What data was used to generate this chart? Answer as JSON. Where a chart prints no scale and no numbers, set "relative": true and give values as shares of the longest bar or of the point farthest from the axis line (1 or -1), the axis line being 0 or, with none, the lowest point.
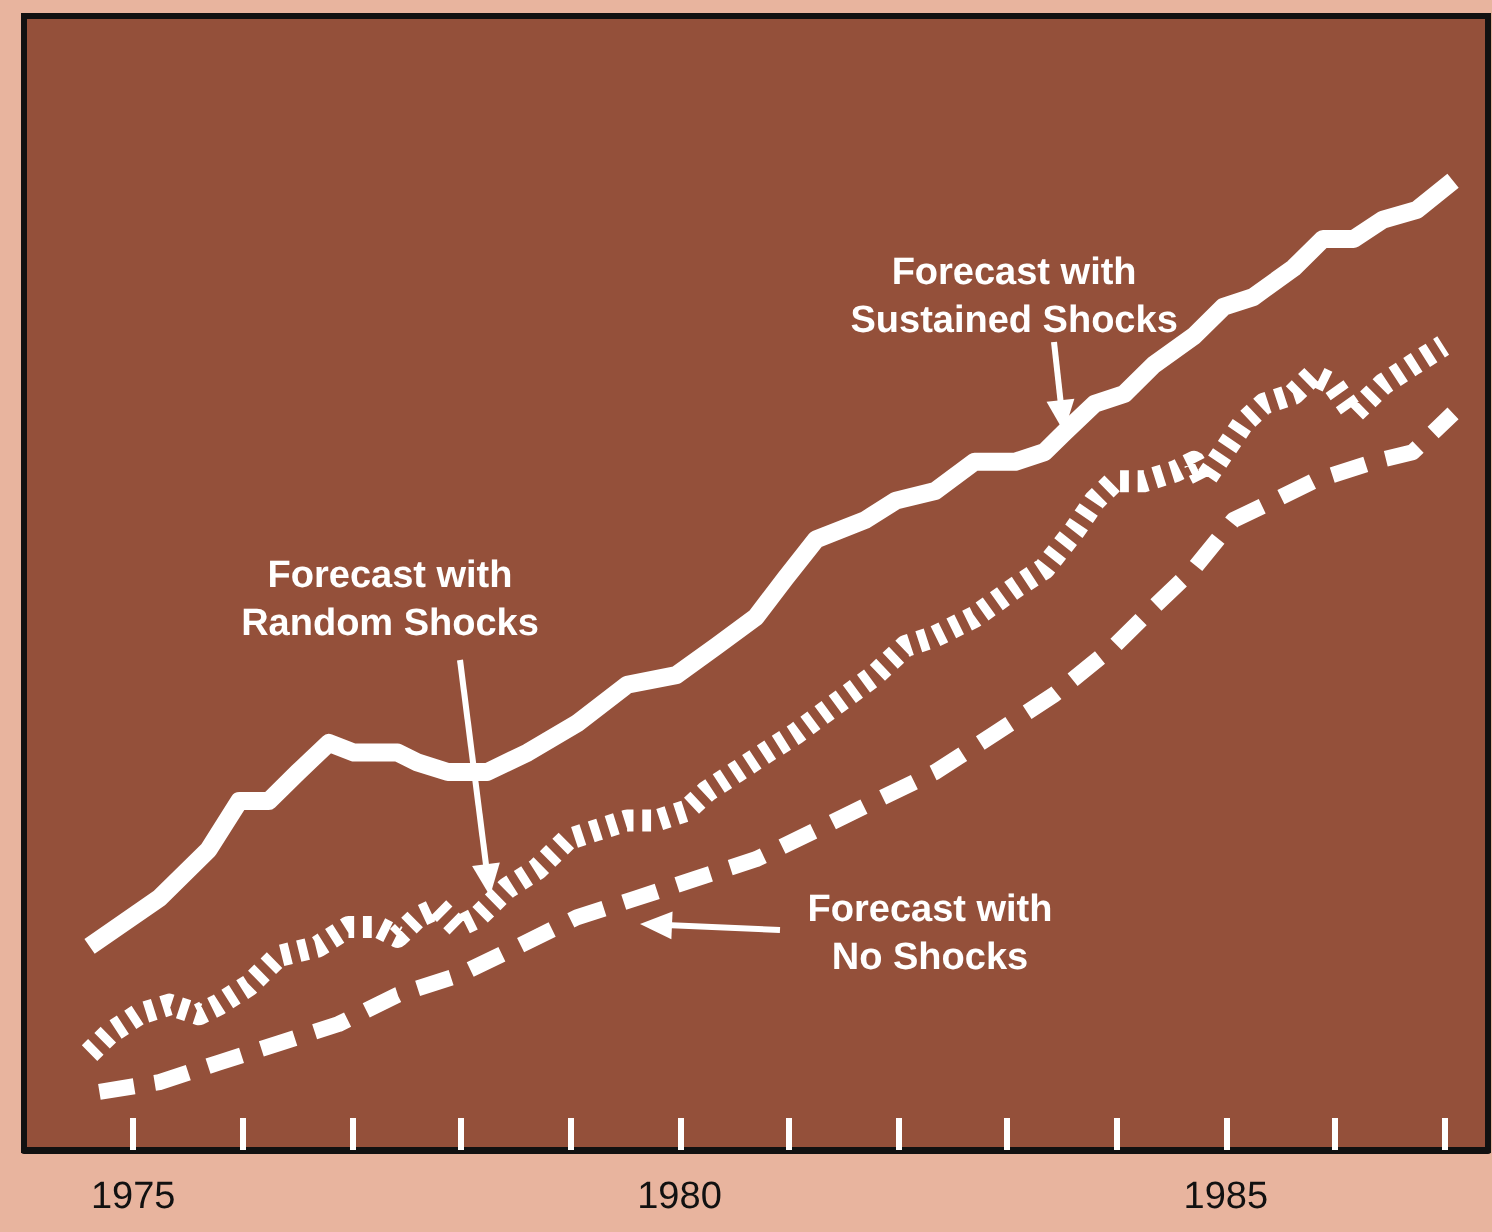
{
  "chart_data": {
    "type": "line",
    "relative": true,
    "tick_labels": "x",
    "grid": false,
    "marker": "none",
    "xlim": [
      1974,
      1987.4
    ],
    "xticks": [
      1975,
      {
        "value": 1976,
        "label": null
      },
      {
        "value": 1977,
        "label": null
      },
      {
        "value": 1978,
        "label": null
      },
      {
        "value": 1979,
        "label": null
      },
      1980,
      {
        "value": 1981,
        "label": null
      },
      {
        "value": 1982,
        "label": null
      },
      {
        "value": 1983,
        "label": null
      },
      {
        "value": 1984,
        "label": null
      },
      1985,
      {
        "value": 1986,
        "label": null
      },
      {
        "value": 1987,
        "label": null
      }
    ],
    "series": [
      {
        "color": "#ffffff",
        "line_style": "solid",
        "x": [
          1974.6,
          1975.24,
          1975.69,
          1975.97,
          1976.24,
          1976.51,
          1976.79,
          1977.02,
          1977.42,
          1977.6,
          1977.88,
          1978.24,
          1978.61,
          1979.06,
          1979.52,
          1979.97,
          1980.34,
          1980.7,
          1980.97,
          1981.25,
          1981.7,
          1981.98,
          1982.34,
          1982.7,
          1983.07,
          1983.34,
          1983.52,
          1983.8,
          1984.07,
          1984.34,
          1984.71,
          1984.98,
          1985.25,
          1985.62,
          1985.89,
          1986.17,
          1986.44,
          1986.75,
          1987.08
        ],
        "values": [
          0.21,
          0.26,
          0.31,
          0.36,
          0.36,
          0.39,
          0.42,
          0.41,
          0.41,
          0.4,
          0.39,
          0.39,
          0.41,
          0.44,
          0.48,
          0.49,
          0.52,
          0.55,
          0.59,
          0.63,
          0.65,
          0.67,
          0.68,
          0.71,
          0.71,
          0.72,
          0.74,
          0.77,
          0.78,
          0.81,
          0.84,
          0.87,
          0.88,
          0.91,
          0.94,
          0.94,
          0.96,
          0.97,
          1
        ]
      },
      {
        "color": "#ffffff",
        "line_style": "dotted",
        "x": [
          1974.6,
          1974.78,
          1975.05,
          1975.33,
          1975.6,
          1975.78,
          1976.06,
          1976.33,
          1976.69,
          1976.97,
          1977.24,
          1977.42,
          1977.6,
          1977.79,
          1977.97,
          1978.15,
          1978.42,
          1978.7,
          1978.97,
          1979.24,
          1979.52,
          1979.79,
          1980.06,
          1980.25,
          1980.52,
          1980.79,
          1981.07,
          1981.43,
          1981.79,
          1982.07,
          1982.34,
          1982.7,
          1983.07,
          1983.34,
          1983.62,
          1983.8,
          1983.98,
          1984.25,
          1984.53,
          1984.71,
          1984.8,
          1984.98,
          1985.16,
          1985.35,
          1985.62,
          1985.8,
          1985.98,
          1986.17,
          1986.44,
          1986.71,
          1986.99
        ],
        "values": [
          0.1,
          0.12,
          0.14,
          0.15,
          0.14,
          0.15,
          0.17,
          0.2,
          0.21,
          0.23,
          0.23,
          0.22,
          0.24,
          0.25,
          0.23,
          0.24,
          0.27,
          0.29,
          0.32,
          0.33,
          0.34,
          0.34,
          0.35,
          0.37,
          0.39,
          0.41,
          0.43,
          0.46,
          0.49,
          0.52,
          0.53,
          0.55,
          0.58,
          0.6,
          0.64,
          0.67,
          0.69,
          0.69,
          0.7,
          0.71,
          0.69,
          0.72,
          0.75,
          0.77,
          0.78,
          0.8,
          0.79,
          0.76,
          0.79,
          0.81,
          0.83
        ]
      },
      {
        "color": "#ffffff",
        "line_style": "dashed",
        "x": [
          1974.69,
          1975.24,
          1975.78,
          1976.33,
          1976.88,
          1977.42,
          1977.97,
          1978.52,
          1979.06,
          1979.61,
          1980.15,
          1980.7,
          1981.25,
          1981.79,
          1982.34,
          1982.89,
          1983.43,
          1983.98,
          1984.34,
          1984.71,
          1985.07,
          1985.44,
          1985.8,
          1986.35,
          1986.71,
          1987.08
        ],
        "values": [
          0.06,
          0.07,
          0.09,
          0.11,
          0.13,
          0.16,
          0.18,
          0.21,
          0.24,
          0.26,
          0.28,
          0.3,
          0.33,
          0.36,
          0.39,
          0.43,
          0.47,
          0.52,
          0.56,
          0.6,
          0.65,
          0.67,
          0.69,
          0.71,
          0.72,
          0.76
        ]
      }
    ],
    "annotations": [
      {
        "text": "Forecast with\nSustained Shocks",
        "x": 1983.52,
        "y": 0.74
      },
      "Forecast with\nRandom Shocks",
      "Forecast with\nNo Shocks"
    ]
  }
}
